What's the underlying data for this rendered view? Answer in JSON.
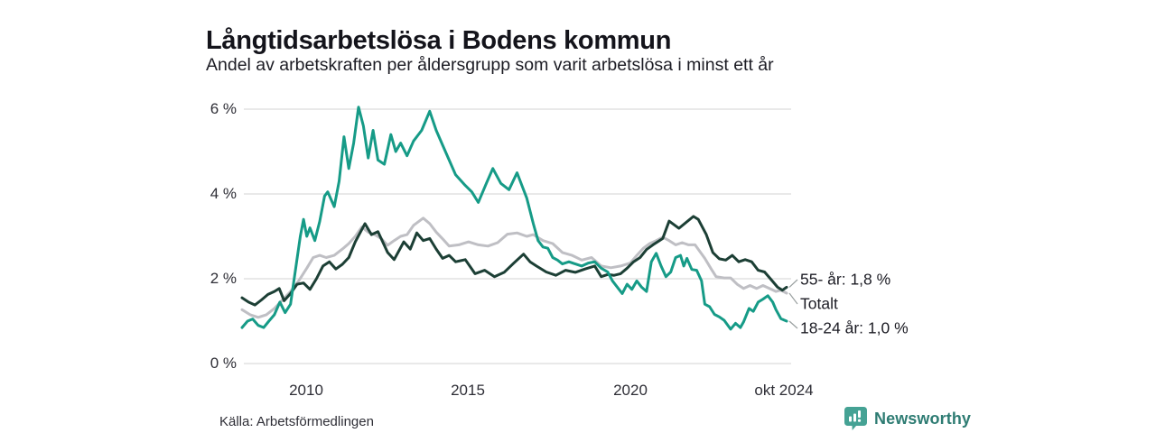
{
  "header": {
    "title": "Långtidsarbetslösa i Bodens kommun",
    "subtitle": "Andel av arbetskraften per åldersgrupp som varit arbetslösa i minst ett år"
  },
  "chart_data": {
    "type": "line",
    "title": "Långtidsarbetslösa i Bodens kommun",
    "subtitle": "Andel av arbetskraften per åldersgrupp som varit arbetslösa i minst ett år",
    "unit": "%",
    "grid": "horizontal",
    "legend_position": "end-of-line labels, right side",
    "x_axis": {
      "min": 2008.0,
      "max": 2024.83,
      "ticks": [
        {
          "label": "2010",
          "year": 2010
        },
        {
          "label": "2015",
          "year": 2015
        },
        {
          "label": "2020",
          "year": 2020
        },
        {
          "label": "okt 2024",
          "year": 2024.79
        }
      ]
    },
    "y_axis": {
      "min": 0,
      "max": 6,
      "ticks": [
        {
          "label": "6 %",
          "value": 6
        },
        {
          "label": "4 %",
          "value": 4
        },
        {
          "label": "2 %",
          "value": 2
        },
        {
          "label": "0 %",
          "value": 0
        }
      ]
    },
    "series": [
      {
        "name": "Totalt",
        "end_label": "Totalt",
        "end_value": 1.66,
        "color": "#bfbfc4",
        "points": [
          [
            2008.0,
            1.27
          ],
          [
            2008.25,
            1.15
          ],
          [
            2008.5,
            1.09
          ],
          [
            2008.75,
            1.15
          ],
          [
            2009.0,
            1.3
          ],
          [
            2009.25,
            1.5
          ],
          [
            2009.5,
            1.7
          ],
          [
            2009.75,
            1.95
          ],
          [
            2010.0,
            2.25
          ],
          [
            2010.2,
            2.5
          ],
          [
            2010.4,
            2.55
          ],
          [
            2010.6,
            2.5
          ],
          [
            2010.85,
            2.55
          ],
          [
            2011.1,
            2.7
          ],
          [
            2011.3,
            2.83
          ],
          [
            2011.5,
            3.0
          ],
          [
            2011.7,
            3.22
          ],
          [
            2011.9,
            3.1
          ],
          [
            2012.1,
            3.04
          ],
          [
            2012.3,
            2.95
          ],
          [
            2012.5,
            2.79
          ],
          [
            2012.7,
            2.9
          ],
          [
            2012.9,
            3.0
          ],
          [
            2013.1,
            3.04
          ],
          [
            2013.3,
            3.26
          ],
          [
            2013.6,
            3.43
          ],
          [
            2013.8,
            3.3
          ],
          [
            2014.0,
            3.1
          ],
          [
            2014.2,
            2.94
          ],
          [
            2014.4,
            2.77
          ],
          [
            2014.7,
            2.8
          ],
          [
            2015.0,
            2.87
          ],
          [
            2015.3,
            2.8
          ],
          [
            2015.6,
            2.77
          ],
          [
            2015.9,
            2.85
          ],
          [
            2016.2,
            3.05
          ],
          [
            2016.5,
            3.08
          ],
          [
            2016.8,
            3.0
          ],
          [
            2017.0,
            3.04
          ],
          [
            2017.3,
            2.9
          ],
          [
            2017.6,
            2.83
          ],
          [
            2017.9,
            2.62
          ],
          [
            2018.2,
            2.55
          ],
          [
            2018.5,
            2.44
          ],
          [
            2018.8,
            2.5
          ],
          [
            2019.1,
            2.3
          ],
          [
            2019.4,
            2.26
          ],
          [
            2019.7,
            2.3
          ],
          [
            2020.0,
            2.37
          ],
          [
            2020.2,
            2.55
          ],
          [
            2020.4,
            2.72
          ],
          [
            2020.6,
            2.83
          ],
          [
            2020.8,
            2.9
          ],
          [
            2021.0,
            2.98
          ],
          [
            2021.2,
            2.9
          ],
          [
            2021.4,
            2.8
          ],
          [
            2021.6,
            2.85
          ],
          [
            2021.8,
            2.8
          ],
          [
            2022.0,
            2.8
          ],
          [
            2022.3,
            2.48
          ],
          [
            2022.5,
            2.23
          ],
          [
            2022.65,
            2.05
          ],
          [
            2022.9,
            2.02
          ],
          [
            2023.1,
            2.02
          ],
          [
            2023.3,
            1.87
          ],
          [
            2023.5,
            1.77
          ],
          [
            2023.7,
            1.84
          ],
          [
            2023.9,
            1.77
          ],
          [
            2024.1,
            1.84
          ],
          [
            2024.3,
            1.77
          ],
          [
            2024.5,
            1.7
          ],
          [
            2024.65,
            1.73
          ],
          [
            2024.83,
            1.66
          ]
        ]
      },
      {
        "name": "55- år",
        "end_label": "55- år: 1,8 %",
        "end_value": 1.8,
        "color": "#1c3f35",
        "points": [
          [
            2008.0,
            1.55
          ],
          [
            2008.2,
            1.45
          ],
          [
            2008.4,
            1.38
          ],
          [
            2008.6,
            1.5
          ],
          [
            2008.8,
            1.63
          ],
          [
            2009.0,
            1.7
          ],
          [
            2009.15,
            1.77
          ],
          [
            2009.3,
            1.48
          ],
          [
            2009.5,
            1.65
          ],
          [
            2009.7,
            1.87
          ],
          [
            2009.9,
            1.9
          ],
          [
            2010.1,
            1.75
          ],
          [
            2010.3,
            2.0
          ],
          [
            2010.5,
            2.3
          ],
          [
            2010.7,
            2.4
          ],
          [
            2010.9,
            2.23
          ],
          [
            2011.1,
            2.34
          ],
          [
            2011.3,
            2.5
          ],
          [
            2011.5,
            2.87
          ],
          [
            2011.8,
            3.3
          ],
          [
            2012.0,
            3.04
          ],
          [
            2012.2,
            3.11
          ],
          [
            2012.5,
            2.62
          ],
          [
            2012.7,
            2.45
          ],
          [
            2013.0,
            2.87
          ],
          [
            2013.2,
            2.7
          ],
          [
            2013.4,
            3.08
          ],
          [
            2013.6,
            2.9
          ],
          [
            2013.8,
            2.95
          ],
          [
            2014.0,
            2.7
          ],
          [
            2014.2,
            2.48
          ],
          [
            2014.4,
            2.55
          ],
          [
            2014.6,
            2.4
          ],
          [
            2014.9,
            2.45
          ],
          [
            2015.2,
            2.12
          ],
          [
            2015.5,
            2.2
          ],
          [
            2015.8,
            2.05
          ],
          [
            2016.1,
            2.15
          ],
          [
            2016.4,
            2.37
          ],
          [
            2016.7,
            2.58
          ],
          [
            2016.9,
            2.4
          ],
          [
            2017.1,
            2.3
          ],
          [
            2017.4,
            2.16
          ],
          [
            2017.7,
            2.08
          ],
          [
            2018.0,
            2.2
          ],
          [
            2018.3,
            2.15
          ],
          [
            2018.6,
            2.23
          ],
          [
            2018.9,
            2.3
          ],
          [
            2019.1,
            2.05
          ],
          [
            2019.3,
            2.1
          ],
          [
            2019.5,
            2.08
          ],
          [
            2019.7,
            2.12
          ],
          [
            2019.9,
            2.25
          ],
          [
            2020.1,
            2.4
          ],
          [
            2020.3,
            2.5
          ],
          [
            2020.5,
            2.69
          ],
          [
            2020.7,
            2.8
          ],
          [
            2020.9,
            2.9
          ],
          [
            2021.0,
            2.95
          ],
          [
            2021.2,
            3.36
          ],
          [
            2021.5,
            3.19
          ],
          [
            2021.95,
            3.47
          ],
          [
            2022.1,
            3.4
          ],
          [
            2022.35,
            3.04
          ],
          [
            2022.55,
            2.62
          ],
          [
            2022.75,
            2.47
          ],
          [
            2022.95,
            2.44
          ],
          [
            2023.15,
            2.55
          ],
          [
            2023.35,
            2.4
          ],
          [
            2023.55,
            2.45
          ],
          [
            2023.75,
            2.4
          ],
          [
            2023.95,
            2.2
          ],
          [
            2024.15,
            2.16
          ],
          [
            2024.35,
            1.98
          ],
          [
            2024.55,
            1.8
          ],
          [
            2024.7,
            1.73
          ],
          [
            2024.83,
            1.8
          ]
        ]
      },
      {
        "name": "18-24 år",
        "end_label": "18-24 år: 1,0 %",
        "end_value": 1.0,
        "color": "#169b87",
        "points": [
          [
            2008.0,
            0.85
          ],
          [
            2008.17,
            1.0
          ],
          [
            2008.33,
            1.05
          ],
          [
            2008.5,
            0.9
          ],
          [
            2008.67,
            0.85
          ],
          [
            2008.83,
            1.0
          ],
          [
            2009.0,
            1.15
          ],
          [
            2009.17,
            1.45
          ],
          [
            2009.33,
            1.2
          ],
          [
            2009.5,
            1.4
          ],
          [
            2009.65,
            2.2
          ],
          [
            2009.8,
            3.0
          ],
          [
            2009.9,
            3.4
          ],
          [
            2010.0,
            3.0
          ],
          [
            2010.1,
            3.2
          ],
          [
            2010.25,
            2.9
          ],
          [
            2010.4,
            3.35
          ],
          [
            2010.55,
            3.95
          ],
          [
            2010.65,
            4.05
          ],
          [
            2010.85,
            3.7
          ],
          [
            2011.0,
            4.3
          ],
          [
            2011.15,
            5.35
          ],
          [
            2011.3,
            4.6
          ],
          [
            2011.45,
            5.2
          ],
          [
            2011.6,
            6.05
          ],
          [
            2011.75,
            5.6
          ],
          [
            2011.9,
            4.85
          ],
          [
            2012.05,
            5.5
          ],
          [
            2012.2,
            4.8
          ],
          [
            2012.4,
            4.7
          ],
          [
            2012.6,
            5.4
          ],
          [
            2012.75,
            5.0
          ],
          [
            2012.9,
            5.2
          ],
          [
            2013.1,
            4.9
          ],
          [
            2013.3,
            5.25
          ],
          [
            2013.55,
            5.5
          ],
          [
            2013.8,
            5.95
          ],
          [
            2014.0,
            5.5
          ],
          [
            2014.2,
            5.15
          ],
          [
            2014.4,
            4.8
          ],
          [
            2014.6,
            4.45
          ],
          [
            2014.9,
            4.2
          ],
          [
            2015.1,
            4.05
          ],
          [
            2015.3,
            3.8
          ],
          [
            2015.55,
            4.25
          ],
          [
            2015.75,
            4.6
          ],
          [
            2016.0,
            4.25
          ],
          [
            2016.25,
            4.1
          ],
          [
            2016.5,
            4.5
          ],
          [
            2016.65,
            4.2
          ],
          [
            2016.8,
            3.9
          ],
          [
            2017.0,
            3.3
          ],
          [
            2017.15,
            2.9
          ],
          [
            2017.3,
            2.75
          ],
          [
            2017.45,
            2.72
          ],
          [
            2017.6,
            2.5
          ],
          [
            2017.75,
            2.44
          ],
          [
            2017.9,
            2.35
          ],
          [
            2018.1,
            2.4
          ],
          [
            2018.3,
            2.35
          ],
          [
            2018.5,
            2.3
          ],
          [
            2018.7,
            2.37
          ],
          [
            2018.9,
            2.4
          ],
          [
            2019.1,
            2.25
          ],
          [
            2019.3,
            2.16
          ],
          [
            2019.45,
            1.95
          ],
          [
            2019.6,
            1.8
          ],
          [
            2019.75,
            1.65
          ],
          [
            2019.9,
            1.87
          ],
          [
            2020.05,
            1.75
          ],
          [
            2020.2,
            1.95
          ],
          [
            2020.35,
            1.8
          ],
          [
            2020.5,
            1.7
          ],
          [
            2020.65,
            2.4
          ],
          [
            2020.8,
            2.6
          ],
          [
            2020.95,
            2.3
          ],
          [
            2021.1,
            2.05
          ],
          [
            2021.25,
            2.16
          ],
          [
            2021.4,
            2.5
          ],
          [
            2021.55,
            2.55
          ],
          [
            2021.65,
            2.3
          ],
          [
            2021.75,
            2.48
          ],
          [
            2021.9,
            2.22
          ],
          [
            2022.05,
            2.2
          ],
          [
            2022.2,
            1.95
          ],
          [
            2022.3,
            1.4
          ],
          [
            2022.45,
            1.34
          ],
          [
            2022.6,
            1.16
          ],
          [
            2022.75,
            1.1
          ],
          [
            2022.9,
            1.02
          ],
          [
            2023.1,
            0.81
          ],
          [
            2023.25,
            0.95
          ],
          [
            2023.4,
            0.85
          ],
          [
            2023.5,
            0.98
          ],
          [
            2023.67,
            1.3
          ],
          [
            2023.8,
            1.23
          ],
          [
            2023.95,
            1.45
          ],
          [
            2024.1,
            1.52
          ],
          [
            2024.25,
            1.6
          ],
          [
            2024.4,
            1.45
          ],
          [
            2024.5,
            1.27
          ],
          [
            2024.65,
            1.06
          ],
          [
            2024.83,
            1.0
          ]
        ]
      }
    ],
    "colors": {
      "gridline": "#dcdcdc",
      "connector": "#9aa0a0"
    }
  },
  "footer": {
    "source": "Källa: Arbetsförmedlingen",
    "brand": "Newsworthy",
    "brand_color": "#2e7c73",
    "brand_icon_color": "#45a294"
  }
}
